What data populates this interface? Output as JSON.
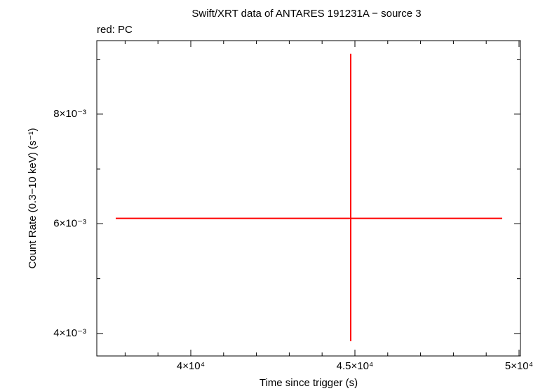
{
  "chart_data": {
    "type": "errorbar",
    "title": "Swift/XRT data of ANTARES 191231A − source 3",
    "subtitle": "red: PC",
    "x_label": "Time since trigger (s)",
    "y_label": "Count Rate (0.3−10 keV) (s⁻¹)",
    "series": [
      {
        "color": "#ff0000",
        "x": [
          44872
        ],
        "values": [
          0.0061
        ],
        "xerr_minus": [
          7158
        ],
        "xerr_plus": [
          4615
        ],
        "yerr_minus": [
          0.00224
        ],
        "yerr_plus": [
          0.003
        ]
      }
    ],
    "xlim": [
      37137,
      50043
    ],
    "ylim": [
      0.00359,
      0.00934
    ],
    "xticks": [
      {
        "value": 40000,
        "label": "4×10⁴"
      },
      {
        "value": 45000,
        "label": "4.5×10⁴"
      },
      {
        "value": 50000,
        "label": "5×10⁴"
      }
    ],
    "yticks": [
      {
        "value": 0.004,
        "label": "4×10⁻³"
      },
      {
        "value": 0.006,
        "label": "6×10⁻³"
      },
      {
        "value": 0.008,
        "label": "8×10⁻³"
      }
    ],
    "xminorticks": [
      38000,
      39000,
      41000,
      42000,
      43000,
      44000,
      46000,
      47000,
      48000,
      49000
    ],
    "yminorticks": [
      0.005,
      0.007,
      0.009
    ]
  }
}
